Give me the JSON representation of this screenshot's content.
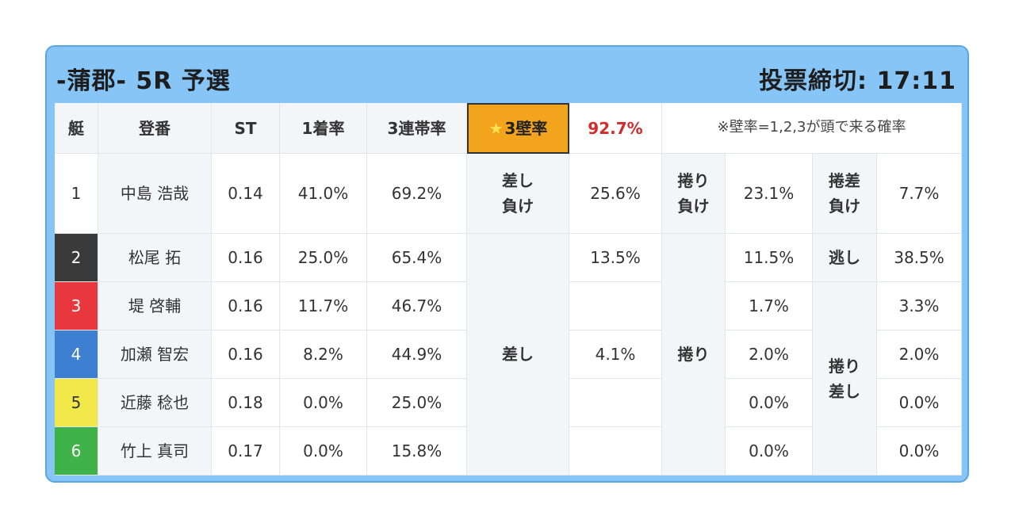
{
  "header": {
    "title": "-蒲郡- 5R 予選",
    "deadline": "投票締切: 17:11"
  },
  "columns": {
    "lane": "艇",
    "toban": "登番",
    "st": "ST",
    "first_rate": "1着率",
    "top3_rate": "3連帯率"
  },
  "wall": {
    "star": "★",
    "label": "3壁率",
    "value": "92.7%",
    "note": "※壁率=1,2,3が頭で来る確率"
  },
  "racers": [
    {
      "lane": "1",
      "name": "中島 浩哉",
      "st": "0.14",
      "first": "41.0%",
      "top3": "69.2%",
      "sashi": "25.6%",
      "makuri": "23.1%",
      "makurizashi": "7.7%"
    },
    {
      "lane": "2",
      "name": "松尾 拓",
      "st": "0.16",
      "first": "25.0%",
      "top3": "65.4%",
      "sashi": "13.5%",
      "makuri": "11.5%",
      "makurizashi": "38.5%"
    },
    {
      "lane": "3",
      "name": "堤 啓輔",
      "st": "0.16",
      "first": "11.7%",
      "top3": "46.7%",
      "sashi": "",
      "makuri": "1.7%",
      "makurizashi": "3.3%"
    },
    {
      "lane": "4",
      "name": "加瀬 智宏",
      "st": "0.16",
      "first": "8.2%",
      "top3": "44.9%",
      "sashi": "4.1%",
      "makuri": "2.0%",
      "makurizashi": "2.0%"
    },
    {
      "lane": "5",
      "name": "近藤 稔也",
      "st": "0.18",
      "first": "0.0%",
      "top3": "25.0%",
      "sashi": "",
      "makuri": "0.0%",
      "makurizashi": "0.0%"
    },
    {
      "lane": "6",
      "name": "竹上 真司",
      "st": "0.17",
      "first": "0.0%",
      "top3": "15.8%",
      "sashi": "",
      "makuri": "0.0%",
      "makurizashi": "0.0%"
    }
  ],
  "kimarite": {
    "sashi_make_1": "差し",
    "sashi_make_2": "負け",
    "makuri_make_1": "捲り",
    "makuri_make_2": "負け",
    "makurizashi_make_1": "捲差",
    "makurizashi_make_2": "負け",
    "nige": "逃し",
    "sashi": "差し",
    "makuri": "捲り",
    "makurizashi_1": "捲り",
    "makurizashi_2": "差し"
  }
}
